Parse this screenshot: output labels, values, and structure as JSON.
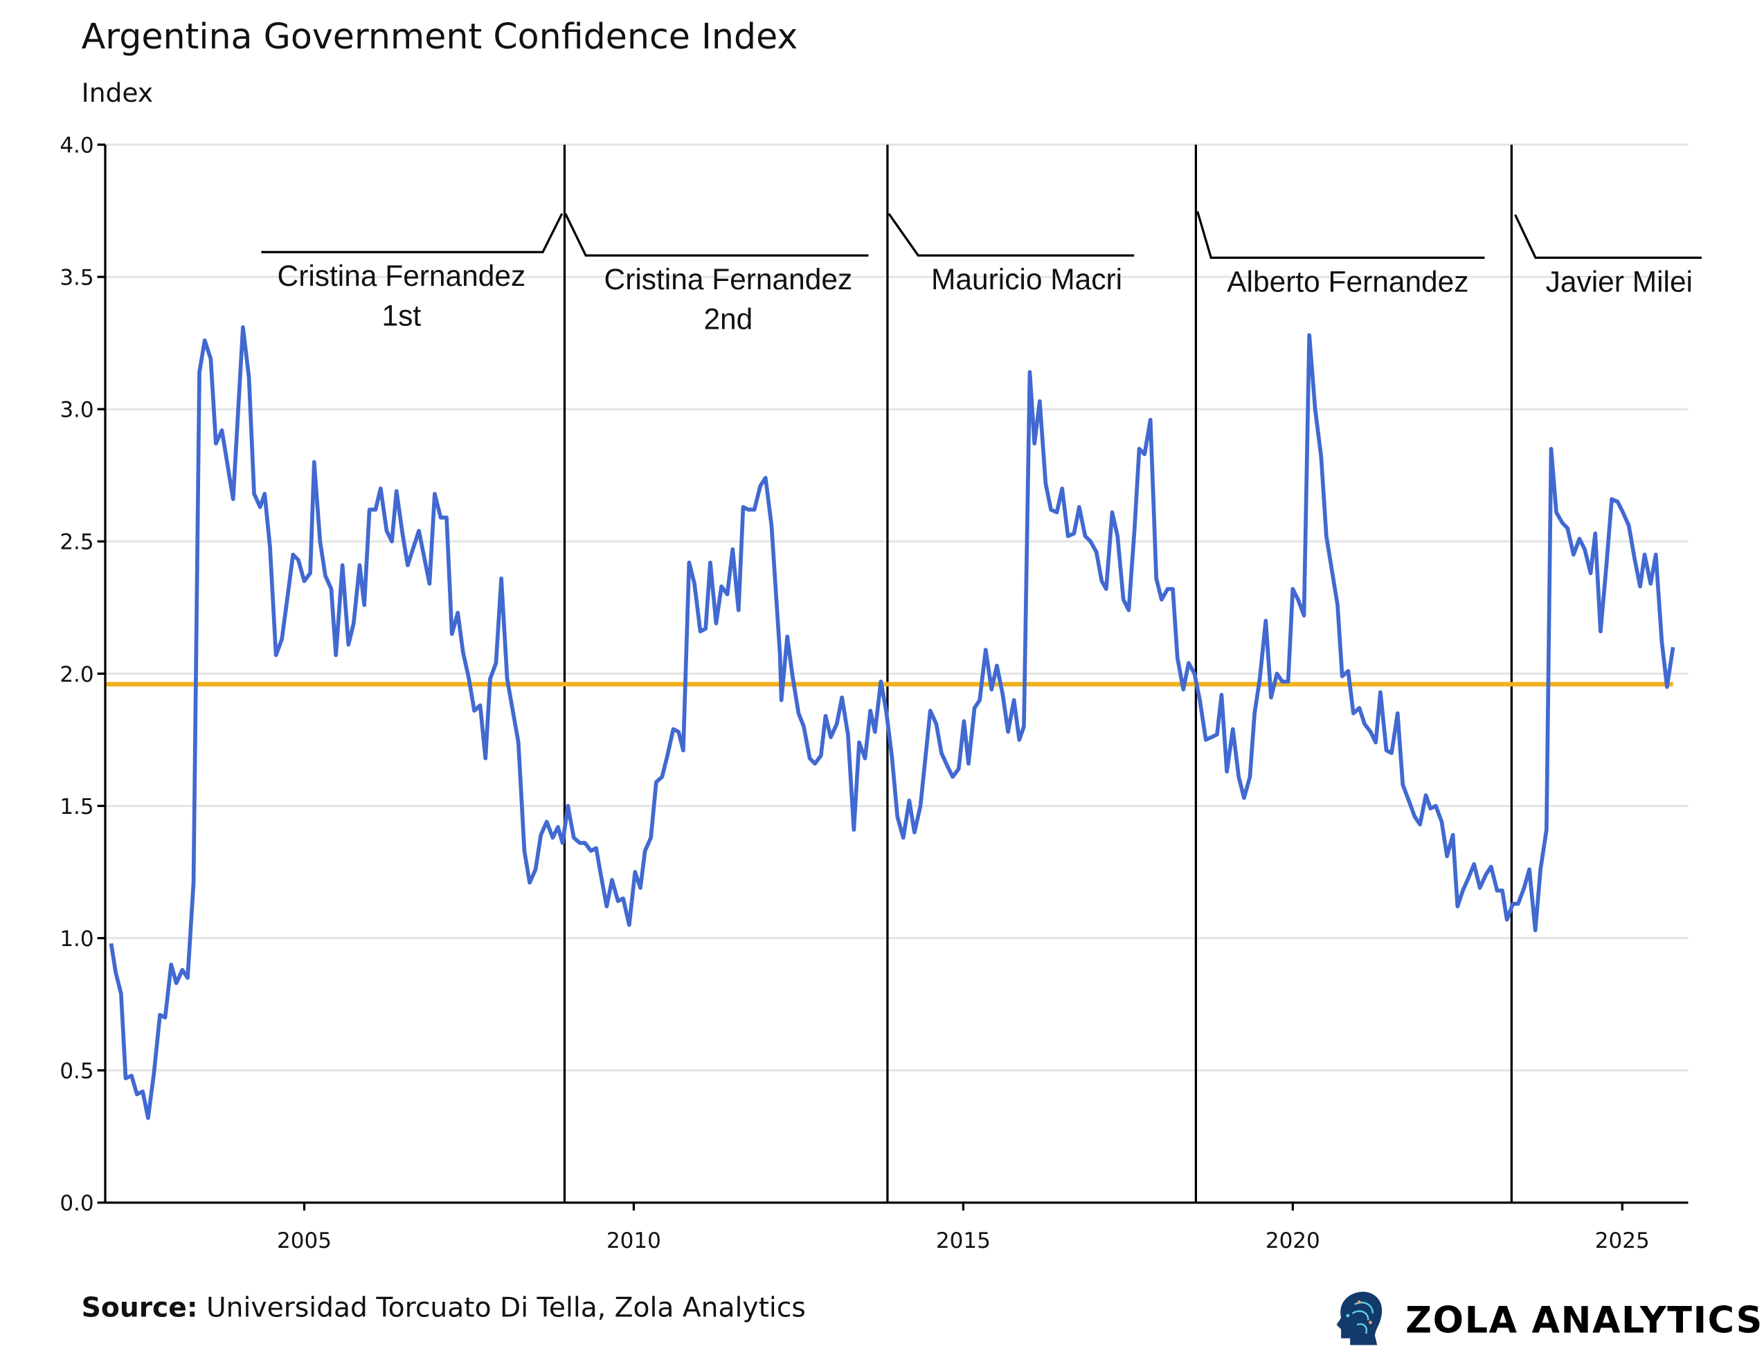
{
  "chart_data": {
    "type": "line",
    "title": "Argentina Government Confidence Index",
    "subtitle": "Index",
    "xlim": [
      2001.98,
      2026.0
    ],
    "ylim": [
      0,
      4
    ],
    "x_ticks": [
      2005,
      2010,
      2015,
      2020,
      2025
    ],
    "x_tick_labels": [
      "2005",
      "2010",
      "2015",
      "2020",
      "2025"
    ],
    "y_ticks": [
      0,
      0.5,
      1,
      1.5,
      2,
      2.5,
      3,
      3.5,
      4
    ],
    "y_tick_labels": [
      "0.0",
      "0.5",
      "1.0",
      "1.5",
      "2.0",
      "2.5",
      "3.0",
      "3.5",
      "4.0"
    ],
    "grid": "horizontal",
    "colors": {
      "series": "#4169d1",
      "reference": "#f0b11e",
      "grid": "#e6e6e6",
      "axis": "#000000"
    },
    "reference_line": {
      "y": 1.96
    },
    "periods": [
      {
        "label_lines": [
          "Cristina Fernandez",
          "1st"
        ],
        "end": 2008.95
      },
      {
        "label_lines": [
          "Cristina Fernandez",
          "2nd"
        ],
        "start": 2008.95
      },
      {
        "label_lines": [
          "Mauricio Macri"
        ],
        "start": 2013.85
      },
      {
        "label_lines": [
          "Alberto Fernandez"
        ],
        "start": 2018.53
      },
      {
        "label_lines": [
          "Javier Milei"
        ],
        "start": 2023.32
      }
    ],
    "series": [
      {
        "points": [
          [
            2002.07,
            0.98
          ],
          [
            2002.14,
            0.87
          ],
          [
            2002.22,
            0.79
          ],
          [
            2002.29,
            0.47
          ],
          [
            2002.38,
            0.48
          ],
          [
            2002.46,
            0.41
          ],
          [
            2002.55,
            0.42
          ],
          [
            2002.63,
            0.32
          ],
          [
            2002.72,
            0.49
          ],
          [
            2002.81,
            0.71
          ],
          [
            2002.89,
            0.7
          ],
          [
            2002.98,
            0.9
          ],
          [
            2003.06,
            0.83
          ],
          [
            2003.15,
            0.88
          ],
          [
            2003.23,
            0.85
          ],
          [
            2003.32,
            1.21
          ],
          [
            2003.41,
            3.14
          ],
          [
            2003.49,
            3.26
          ],
          [
            2003.58,
            3.19
          ],
          [
            2003.66,
            2.87
          ],
          [
            2003.75,
            2.92
          ],
          [
            2003.92,
            2.66
          ],
          [
            2004.07,
            3.31
          ],
          [
            2004.16,
            3.12
          ],
          [
            2004.24,
            2.68
          ],
          [
            2004.33,
            2.63
          ],
          [
            2004.4,
            2.68
          ],
          [
            2004.48,
            2.48
          ],
          [
            2004.57,
            2.07
          ],
          [
            2004.66,
            2.13
          ],
          [
            2004.74,
            2.28
          ],
          [
            2004.83,
            2.45
          ],
          [
            2004.91,
            2.43
          ],
          [
            2005.0,
            2.35
          ],
          [
            2005.09,
            2.38
          ],
          [
            2005.15,
            2.8
          ],
          [
            2005.24,
            2.5
          ],
          [
            2005.32,
            2.37
          ],
          [
            2005.41,
            2.32
          ],
          [
            2005.48,
            2.07
          ],
          [
            2005.58,
            2.41
          ],
          [
            2005.67,
            2.11
          ],
          [
            2005.75,
            2.19
          ],
          [
            2005.84,
            2.41
          ],
          [
            2005.91,
            2.26
          ],
          [
            2005.99,
            2.62
          ],
          [
            2006.08,
            2.62
          ],
          [
            2006.16,
            2.7
          ],
          [
            2006.25,
            2.54
          ],
          [
            2006.33,
            2.5
          ],
          [
            2006.4,
            2.69
          ],
          [
            2006.49,
            2.53
          ],
          [
            2006.57,
            2.41
          ],
          [
            2006.66,
            2.48
          ],
          [
            2006.74,
            2.54
          ],
          [
            2006.9,
            2.34
          ],
          [
            2006.98,
            2.68
          ],
          [
            2007.07,
            2.59
          ],
          [
            2007.16,
            2.59
          ],
          [
            2007.24,
            2.15
          ],
          [
            2007.33,
            2.23
          ],
          [
            2007.41,
            2.08
          ],
          [
            2007.5,
            1.98
          ],
          [
            2007.58,
            1.86
          ],
          [
            2007.67,
            1.88
          ],
          [
            2007.75,
            1.68
          ],
          [
            2007.82,
            1.98
          ],
          [
            2007.91,
            2.04
          ],
          [
            2007.99,
            2.36
          ],
          [
            2008.08,
            1.98
          ],
          [
            2008.25,
            1.74
          ],
          [
            2008.34,
            1.33
          ],
          [
            2008.42,
            1.21
          ],
          [
            2008.51,
            1.26
          ],
          [
            2008.59,
            1.39
          ],
          [
            2008.68,
            1.44
          ],
          [
            2008.77,
            1.38
          ],
          [
            2008.85,
            1.42
          ],
          [
            2008.92,
            1.36
          ],
          [
            2009.0,
            1.5
          ],
          [
            2009.09,
            1.38
          ],
          [
            2009.18,
            1.36
          ],
          [
            2009.26,
            1.36
          ],
          [
            2009.35,
            1.33
          ],
          [
            2009.43,
            1.34
          ],
          [
            2009.5,
            1.24
          ],
          [
            2009.59,
            1.12
          ],
          [
            2009.67,
            1.22
          ],
          [
            2009.76,
            1.14
          ],
          [
            2009.84,
            1.15
          ],
          [
            2009.93,
            1.05
          ],
          [
            2010.02,
            1.25
          ],
          [
            2010.1,
            1.19
          ],
          [
            2010.17,
            1.33
          ],
          [
            2010.26,
            1.38
          ],
          [
            2010.34,
            1.59
          ],
          [
            2010.43,
            1.61
          ],
          [
            2010.51,
            1.69
          ],
          [
            2010.6,
            1.79
          ],
          [
            2010.68,
            1.78
          ],
          [
            2010.75,
            1.71
          ],
          [
            2010.84,
            2.42
          ],
          [
            2010.92,
            2.34
          ],
          [
            2011.01,
            2.16
          ],
          [
            2011.09,
            2.17
          ],
          [
            2011.16,
            2.42
          ],
          [
            2011.25,
            2.19
          ],
          [
            2011.33,
            2.33
          ],
          [
            2011.42,
            2.3
          ],
          [
            2011.5,
            2.47
          ],
          [
            2011.59,
            2.24
          ],
          [
            2011.66,
            2.63
          ],
          [
            2011.74,
            2.62
          ],
          [
            2011.83,
            2.62
          ],
          [
            2011.92,
            2.71
          ],
          [
            2012.0,
            2.74
          ],
          [
            2012.09,
            2.56
          ],
          [
            2012.22,
            2.07
          ],
          [
            2012.24,
            1.9
          ],
          [
            2012.33,
            2.14
          ],
          [
            2012.41,
            1.99
          ],
          [
            2012.5,
            1.85
          ],
          [
            2012.58,
            1.8
          ],
          [
            2012.67,
            1.68
          ],
          [
            2012.75,
            1.66
          ],
          [
            2012.84,
            1.69
          ],
          [
            2012.91,
            1.84
          ],
          [
            2012.99,
            1.76
          ],
          [
            2013.08,
            1.81
          ],
          [
            2013.16,
            1.91
          ],
          [
            2013.25,
            1.77
          ],
          [
            2013.34,
            1.41
          ],
          [
            2013.42,
            1.74
          ],
          [
            2013.51,
            1.68
          ],
          [
            2013.59,
            1.86
          ],
          [
            2013.66,
            1.78
          ],
          [
            2013.75,
            1.97
          ],
          [
            2013.83,
            1.86
          ],
          [
            2013.92,
            1.68
          ],
          [
            2014.0,
            1.46
          ],
          [
            2014.09,
            1.38
          ],
          [
            2014.18,
            1.52
          ],
          [
            2014.26,
            1.4
          ],
          [
            2014.35,
            1.5
          ],
          [
            2014.43,
            1.69
          ],
          [
            2014.5,
            1.86
          ],
          [
            2014.59,
            1.81
          ],
          [
            2014.67,
            1.7
          ],
          [
            2014.76,
            1.65
          ],
          [
            2014.84,
            1.61
          ],
          [
            2014.93,
            1.64
          ],
          [
            2015.01,
            1.82
          ],
          [
            2015.08,
            1.66
          ],
          [
            2015.17,
            1.87
          ],
          [
            2015.25,
            1.9
          ],
          [
            2015.34,
            2.09
          ],
          [
            2015.43,
            1.94
          ],
          [
            2015.51,
            2.03
          ],
          [
            2015.6,
            1.92
          ],
          [
            2015.68,
            1.78
          ],
          [
            2015.77,
            1.9
          ],
          [
            2015.85,
            1.75
          ],
          [
            2015.92,
            1.8
          ],
          [
            2016.01,
            3.14
          ],
          [
            2016.08,
            2.87
          ],
          [
            2016.16,
            3.03
          ],
          [
            2016.25,
            2.72
          ],
          [
            2016.33,
            2.62
          ],
          [
            2016.42,
            2.61
          ],
          [
            2016.5,
            2.7
          ],
          [
            2016.59,
            2.52
          ],
          [
            2016.68,
            2.53
          ],
          [
            2016.76,
            2.63
          ],
          [
            2016.85,
            2.52
          ],
          [
            2016.93,
            2.5
          ],
          [
            2017.02,
            2.46
          ],
          [
            2017.1,
            2.35
          ],
          [
            2017.17,
            2.32
          ],
          [
            2017.26,
            2.61
          ],
          [
            2017.34,
            2.52
          ],
          [
            2017.43,
            2.28
          ],
          [
            2017.51,
            2.24
          ],
          [
            2017.6,
            2.55
          ],
          [
            2017.67,
            2.85
          ],
          [
            2017.75,
            2.83
          ],
          [
            2017.84,
            2.96
          ],
          [
            2017.93,
            2.36
          ],
          [
            2018.01,
            2.28
          ],
          [
            2018.1,
            2.32
          ],
          [
            2018.18,
            2.32
          ],
          [
            2018.25,
            2.06
          ],
          [
            2018.34,
            1.94
          ],
          [
            2018.42,
            2.04
          ],
          [
            2018.51,
            2.0
          ],
          [
            2018.59,
            1.9
          ],
          [
            2018.68,
            1.75
          ],
          [
            2018.77,
            1.76
          ],
          [
            2018.85,
            1.77
          ],
          [
            2018.92,
            1.92
          ],
          [
            2019.0,
            1.63
          ],
          [
            2019.09,
            1.79
          ],
          [
            2019.18,
            1.61
          ],
          [
            2019.26,
            1.53
          ],
          [
            2019.35,
            1.61
          ],
          [
            2019.42,
            1.85
          ],
          [
            2019.5,
            1.98
          ],
          [
            2019.59,
            2.2
          ],
          [
            2019.67,
            1.91
          ],
          [
            2019.76,
            2.0
          ],
          [
            2019.84,
            1.97
          ],
          [
            2019.93,
            1.97
          ],
          [
            2020.0,
            2.32
          ],
          [
            2020.08,
            2.28
          ],
          [
            2020.17,
            2.22
          ],
          [
            2020.25,
            3.28
          ],
          [
            2020.34,
            3.0
          ],
          [
            2020.43,
            2.82
          ],
          [
            2020.51,
            2.52
          ],
          [
            2020.6,
            2.38
          ],
          [
            2020.68,
            2.26
          ],
          [
            2020.75,
            1.99
          ],
          [
            2020.84,
            2.01
          ],
          [
            2020.92,
            1.85
          ],
          [
            2021.01,
            1.87
          ],
          [
            2021.09,
            1.81
          ],
          [
            2021.18,
            1.78
          ],
          [
            2021.26,
            1.74
          ],
          [
            2021.33,
            1.93
          ],
          [
            2021.42,
            1.71
          ],
          [
            2021.5,
            1.7
          ],
          [
            2021.59,
            1.85
          ],
          [
            2021.67,
            1.58
          ],
          [
            2021.76,
            1.52
          ],
          [
            2021.85,
            1.46
          ],
          [
            2021.93,
            1.43
          ],
          [
            2022.02,
            1.54
          ],
          [
            2022.09,
            1.49
          ],
          [
            2022.17,
            1.5
          ],
          [
            2022.26,
            1.44
          ],
          [
            2022.34,
            1.31
          ],
          [
            2022.43,
            1.39
          ],
          [
            2022.5,
            1.12
          ],
          [
            2022.58,
            1.18
          ],
          [
            2022.67,
            1.23
          ],
          [
            2022.75,
            1.28
          ],
          [
            2022.84,
            1.19
          ],
          [
            2022.93,
            1.24
          ],
          [
            2023.01,
            1.27
          ],
          [
            2023.1,
            1.18
          ],
          [
            2023.18,
            1.18
          ],
          [
            2023.25,
            1.07
          ],
          [
            2023.34,
            1.13
          ],
          [
            2023.42,
            1.13
          ],
          [
            2023.51,
            1.19
          ],
          [
            2023.59,
            1.26
          ],
          [
            2023.68,
            1.03
          ],
          [
            2023.76,
            1.26
          ],
          [
            2023.85,
            1.41
          ],
          [
            2023.92,
            2.85
          ],
          [
            2024.0,
            2.61
          ],
          [
            2024.09,
            2.57
          ],
          [
            2024.17,
            2.55
          ],
          [
            2024.26,
            2.45
          ],
          [
            2024.35,
            2.51
          ],
          [
            2024.43,
            2.47
          ],
          [
            2024.52,
            2.38
          ],
          [
            2024.59,
            2.53
          ],
          [
            2024.67,
            2.16
          ],
          [
            2024.76,
            2.41
          ],
          [
            2024.84,
            2.66
          ],
          [
            2024.93,
            2.65
          ],
          [
            2025.01,
            2.61
          ],
          [
            2025.1,
            2.56
          ],
          [
            2025.19,
            2.43
          ],
          [
            2025.27,
            2.33
          ],
          [
            2025.34,
            2.45
          ],
          [
            2025.43,
            2.34
          ],
          [
            2025.51,
            2.45
          ],
          [
            2025.6,
            2.12
          ],
          [
            2025.68,
            1.95
          ],
          [
            2025.77,
            2.1
          ]
        ]
      }
    ]
  },
  "footer": {
    "source_label": "Source:",
    "source_text": " Universidad Torcuato Di Tella, Zola Analytics",
    "logo_text": "ZOLA ANALYTICS",
    "logo_icon": "circuit-head-icon"
  }
}
